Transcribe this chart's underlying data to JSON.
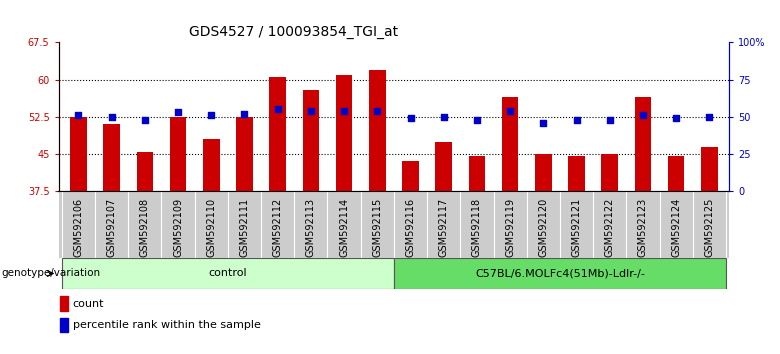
{
  "title": "GDS4527 / 100093854_TGI_at",
  "samples": [
    "GSM592106",
    "GSM592107",
    "GSM592108",
    "GSM592109",
    "GSM592110",
    "GSM592111",
    "GSM592112",
    "GSM592113",
    "GSM592114",
    "GSM592115",
    "GSM592116",
    "GSM592117",
    "GSM592118",
    "GSM592119",
    "GSM592120",
    "GSM592121",
    "GSM592122",
    "GSM592123",
    "GSM592124",
    "GSM592125"
  ],
  "bar_values": [
    52.5,
    51.0,
    45.5,
    52.5,
    48.0,
    52.5,
    60.5,
    58.0,
    61.0,
    62.0,
    43.5,
    47.5,
    44.5,
    56.5,
    45.0,
    44.5,
    45.0,
    56.5,
    44.5,
    46.5
  ],
  "pct_values": [
    51,
    50,
    48,
    53,
    51,
    52,
    55,
    54,
    54,
    54,
    49,
    50,
    48,
    54,
    46,
    48,
    48,
    51,
    49,
    50
  ],
  "ylim_left": [
    37.5,
    67.5
  ],
  "ylim_right": [
    0,
    100
  ],
  "yticks_left": [
    37.5,
    45.0,
    52.5,
    60.0,
    67.5
  ],
  "yticks_right": [
    0,
    25,
    50,
    75,
    100
  ],
  "ytick_labels_left": [
    "37.5",
    "45",
    "52.5",
    "60",
    "67.5"
  ],
  "ytick_labels_right": [
    "0",
    "25",
    "50",
    "75",
    "100%"
  ],
  "bar_color": "#cc0000",
  "pct_color": "#0000cc",
  "bg_color": "#ffffff",
  "plot_bg": "#ffffff",
  "control_indices": [
    0,
    1,
    2,
    3,
    4,
    5,
    6,
    7,
    8,
    9
  ],
  "treatment_indices": [
    10,
    11,
    12,
    13,
    14,
    15,
    16,
    17,
    18,
    19
  ],
  "control_label": "control",
  "treatment_label": "C57BL/6.MOLFc4(51Mb)-Ldlr-/-",
  "control_color": "#ccffcc",
  "treatment_color": "#66dd66",
  "genotype_label": "genotype/variation",
  "legend_count": "count",
  "legend_pct": "percentile rank within the sample",
  "title_fontsize": 10,
  "tick_fontsize": 7,
  "label_fontsize": 8,
  "xticklabel_color": "#000000",
  "xticklabel_bg": "#cccccc"
}
